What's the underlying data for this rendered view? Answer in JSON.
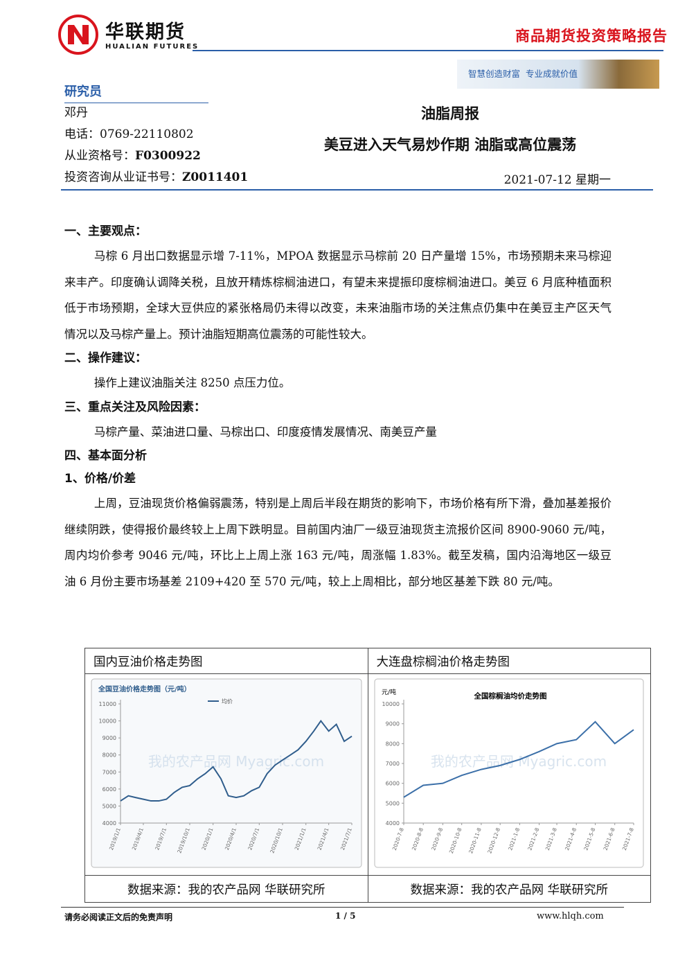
{
  "header": {
    "company_cn": "华联期货",
    "company_en": "HUALIAN FUTURES",
    "report_type": "商品期货投资策略报告",
    "slogan": "智慧创造财富  专业成就价值"
  },
  "researcher": {
    "heading": "研究员",
    "name": "邓丹",
    "phone": "电话：0769-22110802",
    "qualification_label": "从业资格号：",
    "qualification": "F0300922",
    "cert_label": "投资咨询从业证书号：",
    "cert": "Z0011401"
  },
  "title": {
    "main": "油脂周报",
    "sub": "美豆进入天气易炒作期 油脂或高位震荡",
    "date": "2021-07-12 星期一"
  },
  "sections": [
    {
      "heading": "一、主要观点：",
      "paragraphs": [
        "马棕 6 月出口数据显示增 7-11%，MPOA 数据显示马棕前 20 日产量增 15%，市场预期未来马棕迎来丰产。印度确认调降关税，且放开精炼棕榈油进口，有望未来提振印度棕榈油进口。美豆 6 月底种植面积低于市场预期，全球大豆供应的紧张格局仍未得以改变，未来油脂市场的关注焦点仍集中在美豆主产区天气情况以及马棕产量上。预计油脂短期高位震荡的可能性较大。"
      ]
    },
    {
      "heading": "二、操作建议：",
      "paragraphs": [
        "操作上建议油脂关注 8250 点压力位。"
      ]
    },
    {
      "heading": "三、重点关注及风险因素：",
      "paragraphs": [
        "马棕产量、菜油进口量、马棕出口、印度疫情发展情况、南美豆产量"
      ]
    },
    {
      "heading": "四、基本面分析",
      "subheading": "1、价格/价差",
      "paragraphs": [
        "上周，豆油现货价格偏弱震荡，特别是上周后半段在期货的影响下，市场价格有所下滑，叠加基差报价继续阴跌，使得报价最终较上上周下跌明显。目前国内油厂一级豆油现货主流报价区间 8900-9060 元/吨，周内均价参考 9046 元/吨，环比上上周上涨 163 元/吨，周涨幅 1.83%。截至发稿，国内沿海地区一级豆油 6 月份主要市场基差 2109+420 至 570 元/吨，较上上周相比，部分地区基差下跌 80 元/吨。"
      ]
    }
  ],
  "figures": [
    {
      "caption": "国内豆油价格走势图",
      "source": "数据来源：我的农产品网  华联研究所",
      "chart": {
        "type": "line",
        "title": "全国豆油价格走势图（元/吨）",
        "watermark": "我的农产品网 Myagric.com",
        "x": [
          "2019/1/1",
          "2019/2/1",
          "2019/3/1",
          "2019/4/1",
          "2019/5/1",
          "2019/6/1",
          "2019/7/1",
          "2019/8/1",
          "2019/9/1",
          "2019/10/1",
          "2019/11/1",
          "2019/12/1",
          "2020/1/1",
          "2020/2/1",
          "2020/3/1",
          "2020/4/1",
          "2020/5/1",
          "2020/6/1",
          "2020/7/1",
          "2020/8/1",
          "2020/9/1",
          "2020/10/1",
          "2020/11/1",
          "2020/12/1",
          "2021/1/1",
          "2021/2/1",
          "2021/3/1",
          "2021/4/1",
          "2021/5/1",
          "2021/6/1",
          "2021/7/1"
        ],
        "series": [
          {
            "name": "均价",
            "color": "#2f5d8c",
            "values": [
              5300,
              5600,
              5500,
              5400,
              5300,
              5300,
              5400,
              5800,
              6100,
              6200,
              6600,
              6900,
              7300,
              6600,
              5600,
              5500,
              5600,
              5900,
              6100,
              6900,
              7400,
              7700,
              8000,
              8300,
              8800,
              9400,
              10000,
              9400,
              9800,
              8800,
              9100
            ]
          }
        ],
        "xlim": [
          "2019/1/1",
          "2021/7/1"
        ],
        "xticks": [
          "2019/1/1",
          "2019/4/1",
          "2019/7/1",
          "2019/10/1",
          "2020/1/1",
          "2020/4/1",
          "2020/7/1",
          "2020/10/1",
          "2021/1/1",
          "2021/4/1",
          "2021/7/1"
        ],
        "ylim": [
          4000,
          11000
        ],
        "yticks": [
          4000,
          5000,
          6000,
          7000,
          8000,
          9000,
          10000,
          11000
        ]
      }
    },
    {
      "caption": "大连盘棕榈油价格走势图",
      "source": "数据来源：我的农产品网  华联研究所",
      "chart": {
        "type": "line",
        "title": "全国棕榈油均价走势图",
        "y_label": "元/吨",
        "watermark": "我的农产品网 Myagric.com",
        "x": [
          "2020-7-8",
          "2020-8-8",
          "2020-9-8",
          "2020-10-8",
          "2020-11-8",
          "2020-12-8",
          "2021-1-8",
          "2021-2-8",
          "2021-3-8",
          "2021-4-8",
          "2021-5-8",
          "2021-6-8",
          "2021-7-8"
        ],
        "series": [
          {
            "name": "均价",
            "color": "#3b6fa8",
            "values": [
              5300,
              5900,
              6000,
              6400,
              6700,
              6900,
              7200,
              7600,
              8000,
              8200,
              9100,
              8000,
              8700
            ]
          }
        ],
        "xlim": [
          "2020-7-8",
          "2021-7-8"
        ],
        "xticks": [
          "2020-7-8",
          "2020-8-8",
          "2020-9-8",
          "2020-10-8",
          "2020-11-8",
          "2020-12-8",
          "2021-1-8",
          "2021-2-8",
          "2021-3-8",
          "2021-4-8",
          "2021-5-8",
          "2021-6-8",
          "2021-7-8"
        ],
        "ylim": [
          4000,
          10000
        ],
        "yticks": [
          4000,
          5000,
          6000,
          7000,
          8000,
          9000,
          10000
        ]
      }
    }
  ],
  "footer": {
    "disclaimer": "请务必阅读正文后的免责声明",
    "page": "1 / 5",
    "website": "www.hlqh.com"
  }
}
